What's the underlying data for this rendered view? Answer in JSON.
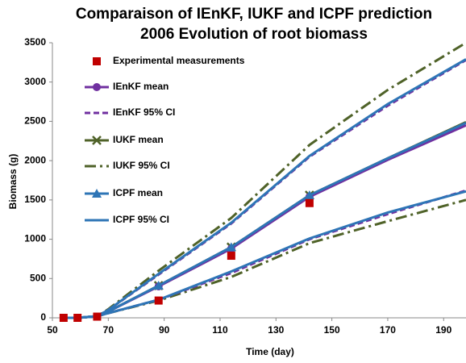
{
  "chart_data": {
    "type": "line",
    "title": [
      "Comparaison of IEnKF, IUKF and ICPF prediction",
      "2006 Evolution of root biomass"
    ],
    "x_label": "Time (day)",
    "y_label": "Biomass (g)",
    "xlim": [
      50,
      198
    ],
    "xticks": [
      50,
      70,
      90,
      110,
      130,
      150,
      170,
      190
    ],
    "ylim": [
      0,
      3500
    ],
    "yticks": [
      0,
      500,
      1000,
      1500,
      2000,
      2500,
      3000,
      3500
    ],
    "series": [
      {
        "name": "Experimental measurements",
        "kind": "scatter",
        "marker": "square",
        "color": "#c00000",
        "x": [
          54,
          59,
          66,
          88,
          114,
          142
        ],
        "values": [
          0,
          0,
          15,
          220,
          790,
          1460
        ]
      },
      {
        "name": "IEnKF mean",
        "kind": "mean",
        "marker": "circle",
        "color": "#7030a0",
        "style": "solid",
        "x": [
          54,
          59,
          66,
          70,
          88,
          114,
          142,
          170,
          198
        ],
        "values": [
          0,
          0,
          20,
          80,
          400,
          880,
          1540,
          2010,
          2450
        ]
      },
      {
        "name": "IEnKF 95% CI",
        "kind": "ci",
        "color": "#7030a0",
        "style": "dashed",
        "x": [
          54,
          59,
          66,
          70,
          88,
          114,
          142,
          170,
          198
        ],
        "values": [
          0,
          0,
          20,
          100,
          550,
          1200,
          2050,
          2700,
          3280
        ],
        "lower": [
          0,
          0,
          20,
          60,
          230,
          570,
          1000,
          1320,
          1620
        ]
      },
      {
        "name": "IUKF mean",
        "kind": "mean",
        "marker": "x",
        "color": "#4f6228",
        "style": "solid",
        "x": [
          54,
          59,
          66,
          70,
          88,
          114,
          142,
          170,
          198
        ],
        "values": [
          0,
          0,
          20,
          80,
          410,
          900,
          1560,
          2030,
          2490
        ]
      },
      {
        "name": "IUKF 95% CI",
        "kind": "ci",
        "color": "#4f6228",
        "style": "dashdot",
        "x": [
          54,
          59,
          66,
          70,
          88,
          114,
          142,
          170,
          198
        ],
        "values": [
          0,
          0,
          20,
          110,
          600,
          1270,
          2200,
          2900,
          3500
        ],
        "lower": [
          0,
          0,
          20,
          60,
          220,
          520,
          950,
          1230,
          1500
        ]
      },
      {
        "name": "ICPF mean",
        "kind": "mean",
        "marker": "triangle",
        "color": "#2e75b6",
        "style": "solid",
        "x": [
          54,
          59,
          66,
          70,
          88,
          114,
          142,
          170,
          198
        ],
        "values": [
          0,
          0,
          20,
          80,
          410,
          900,
          1560,
          2030,
          2480
        ]
      },
      {
        "name": "ICPF 95% CI",
        "kind": "ci",
        "color": "#2e75b6",
        "style": "solid",
        "x": [
          54,
          59,
          66,
          70,
          88,
          114,
          142,
          170,
          198
        ],
        "values": [
          0,
          0,
          20,
          100,
          560,
          1210,
          2060,
          2720,
          3290
        ],
        "lower": [
          0,
          0,
          20,
          60,
          230,
          590,
          1010,
          1340,
          1610
        ]
      }
    ]
  }
}
